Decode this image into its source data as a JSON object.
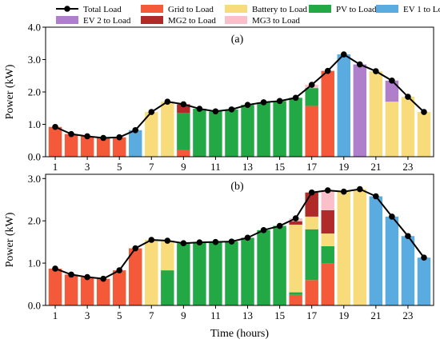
{
  "chart_data": {
    "type": "bar",
    "stacked": true,
    "xlabel": "Time (hours)",
    "ylabel": "Power (kW)",
    "x": [
      1,
      2,
      3,
      4,
      5,
      6,
      7,
      8,
      9,
      10,
      11,
      12,
      13,
      14,
      15,
      16,
      17,
      18,
      19,
      20,
      21,
      22,
      23,
      24
    ],
    "xticks": [
      1,
      3,
      5,
      7,
      9,
      11,
      13,
      15,
      17,
      19,
      21,
      23
    ],
    "legend": {
      "placement": "top",
      "columns": 5,
      "entries": [
        {
          "label": "Total Load",
          "kind": "line"
        },
        {
          "label": "Grid to Load",
          "key": "grid"
        },
        {
          "label": "Battery to Load",
          "key": "battery"
        },
        {
          "label": "PV to Load",
          "key": "pv"
        },
        {
          "label": "EV 1 to Load",
          "key": "ev1"
        },
        {
          "label": "EV 2 to Load",
          "key": "ev2"
        },
        {
          "label": "MG2 to Load",
          "key": "mg2"
        },
        {
          "label": "MG3 to Load",
          "key": "mg3"
        }
      ]
    },
    "colors": {
      "grid": "#f4593a",
      "battery": "#f8db7a",
      "pv": "#22a845",
      "ev1": "#5aace0",
      "ev2": "#b07fcc",
      "mg2": "#b02a2a",
      "mg3": "#f9c0cb",
      "total": "#000000"
    },
    "panels": [
      {
        "tag": "(a)",
        "ylim": [
          0,
          4.0
        ],
        "yticks": [
          "0.0",
          "1.0",
          "2.0",
          "3.0",
          "4.0"
        ],
        "total_load": [
          0.92,
          0.7,
          0.63,
          0.58,
          0.6,
          0.82,
          1.38,
          1.7,
          1.62,
          1.48,
          1.4,
          1.46,
          1.6,
          1.68,
          1.72,
          1.82,
          2.22,
          2.65,
          3.16,
          2.85,
          2.64,
          2.35,
          1.85,
          1.38
        ],
        "series": {
          "grid": [
            0.92,
            0.7,
            0.63,
            0.58,
            0.6,
            0,
            0,
            0,
            0.2,
            0,
            0,
            0,
            0,
            0,
            0,
            0,
            1.57,
            2.65,
            0,
            0,
            0,
            0,
            0,
            0
          ],
          "battery": [
            0,
            0,
            0,
            0,
            0,
            0,
            1.38,
            1.7,
            0,
            0,
            0,
            0,
            0,
            0,
            0,
            0,
            0,
            0,
            0,
            0,
            2.64,
            1.7,
            1.85,
            1.38
          ],
          "pv": [
            0,
            0,
            0,
            0,
            0,
            0,
            0,
            0,
            1.15,
            1.48,
            1.4,
            1.46,
            1.6,
            1.68,
            1.72,
            1.82,
            0.55,
            0,
            0,
            0,
            0,
            0,
            0,
            0
          ],
          "ev1": [
            0,
            0,
            0,
            0,
            0,
            0.82,
            0,
            0,
            0,
            0,
            0,
            0,
            0,
            0,
            0,
            0,
            0,
            0,
            3.16,
            0,
            0,
            0,
            0,
            0
          ],
          "ev2": [
            0,
            0,
            0,
            0,
            0,
            0,
            0,
            0,
            0,
            0,
            0,
            0,
            0,
            0,
            0,
            0,
            0,
            0,
            0,
            2.85,
            0,
            0.65,
            0,
            0
          ],
          "mg2": [
            0,
            0,
            0,
            0,
            0,
            0,
            0,
            0,
            0.27,
            0,
            0,
            0,
            0,
            0,
            0,
            0,
            0,
            0,
            0,
            0,
            0,
            0,
            0,
            0
          ],
          "mg3": [
            0,
            0,
            0,
            0,
            0,
            0,
            0,
            0,
            0,
            0,
            0,
            0,
            0,
            0,
            0,
            0,
            0.1,
            0,
            0,
            0,
            0,
            0,
            0,
            0
          ]
        }
      },
      {
        "tag": "(b)",
        "ylim": [
          0,
          3.1
        ],
        "yticks": [
          "0.0",
          "1.0",
          "2.0",
          "3.0"
        ],
        "total_load": [
          0.87,
          0.73,
          0.67,
          0.63,
          0.83,
          1.35,
          1.55,
          1.53,
          1.47,
          1.49,
          1.5,
          1.51,
          1.6,
          1.78,
          1.88,
          2.06,
          2.67,
          2.72,
          2.69,
          2.75,
          2.58,
          2.1,
          1.64,
          1.13
        ],
        "series": {
          "grid": [
            0.87,
            0.73,
            0.67,
            0.63,
            0.83,
            1.35,
            0,
            0,
            0,
            0,
            0,
            0,
            0,
            0,
            0,
            0.25,
            0.6,
            1.0,
            0,
            0,
            0,
            0,
            0,
            0
          ],
          "battery": [
            0,
            0,
            0,
            0,
            0,
            0,
            1.55,
            0.7,
            0,
            0,
            0,
            0,
            0,
            0,
            0,
            1.6,
            0.3,
            0.3,
            2.69,
            2.75,
            0,
            0,
            0,
            0
          ],
          "pv": [
            0,
            0,
            0,
            0,
            0,
            0,
            0,
            0.83,
            1.47,
            1.49,
            1.5,
            1.51,
            1.6,
            1.78,
            1.88,
            0.06,
            1.2,
            0.4,
            0,
            0,
            0,
            0,
            0,
            0
          ],
          "ev1": [
            0,
            0,
            0,
            0,
            0,
            0,
            0,
            0,
            0,
            0,
            0,
            0,
            0,
            0,
            0,
            0,
            0,
            0,
            0,
            0,
            2.58,
            2.1,
            1.64,
            1.13
          ],
          "ev2": [
            0,
            0,
            0,
            0,
            0,
            0,
            0,
            0,
            0,
            0,
            0,
            0,
            0,
            0,
            0,
            0,
            0,
            0,
            0,
            0,
            0,
            0,
            0,
            0
          ],
          "mg2": [
            0,
            0,
            0,
            0,
            0,
            0,
            0,
            0,
            0,
            0,
            0,
            0,
            0,
            0,
            0,
            0.08,
            0.57,
            0.55,
            0,
            0,
            0,
            0,
            0,
            0
          ],
          "mg3": [
            0,
            0,
            0,
            0,
            0,
            0,
            0,
            0,
            0,
            0,
            0,
            0,
            0,
            0,
            0,
            0.07,
            0,
            0.47,
            0,
            0,
            0,
            0,
            0,
            0
          ]
        }
      }
    ]
  }
}
